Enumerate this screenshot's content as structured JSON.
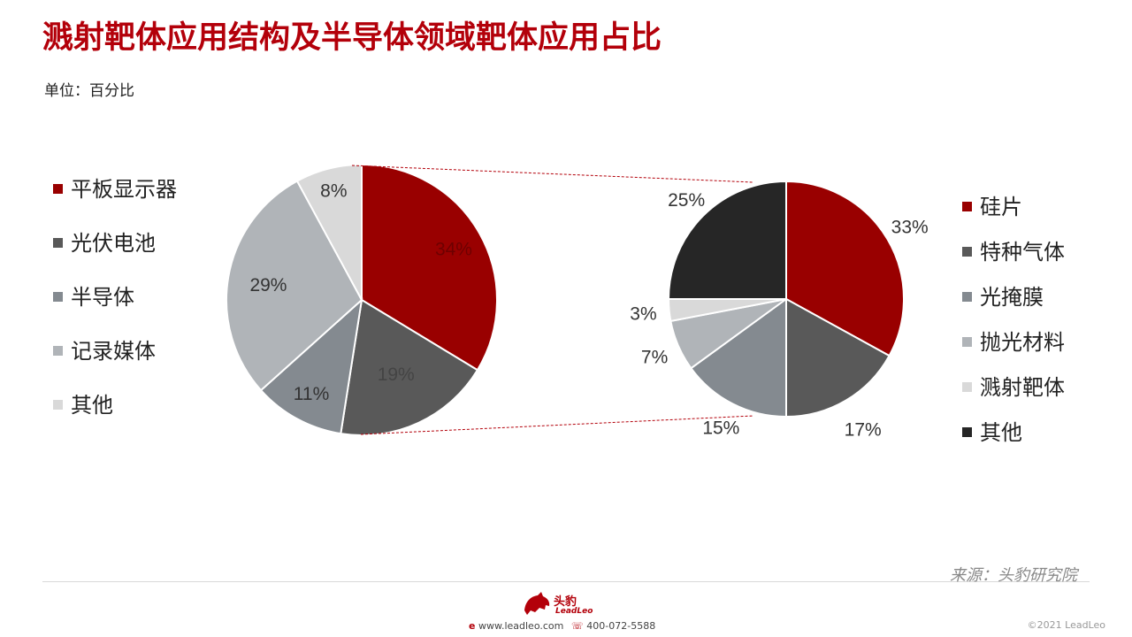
{
  "title": "溅射靶体应用结构及半导体领域靶体应用占比",
  "unit_label": "单位：百分比",
  "source": "来源：头豹研究院",
  "footer": {
    "brand_name": "头豹",
    "brand_sub": "LeadLeo",
    "website": "www.leadleo.com",
    "phone": "400-072-5588",
    "copyright": "©2021 LeadLeo"
  },
  "chart_data": [
    {
      "type": "pie",
      "categories": [
        "平板显示器",
        "光伏电池",
        "半导体",
        "记录媒体",
        "其他"
      ],
      "values": [
        34,
        19,
        11,
        29,
        8
      ],
      "colors": [
        "#990000",
        "#595959",
        "#848a90",
        "#b0b4b8",
        "#d9d9d9"
      ],
      "value_label_colors": [
        "#6e0000",
        "#444444",
        "#333333",
        "#333333",
        "#333333"
      ],
      "legend": "left",
      "exploded_category": "半导体"
    },
    {
      "type": "pie",
      "categories": [
        "硅片",
        "特种气体",
        "光掩膜",
        "抛光材料",
        "溅射靶体",
        "其他"
      ],
      "values": [
        33,
        17,
        15,
        7,
        3,
        25
      ],
      "colors": [
        "#990000",
        "#595959",
        "#848a90",
        "#b0b4b8",
        "#d9d9d9",
        "#262626"
      ],
      "value_label_colors": [
        "#333333",
        "#333333",
        "#333333",
        "#333333",
        "#333333",
        "#333333"
      ],
      "legend": "right"
    }
  ]
}
